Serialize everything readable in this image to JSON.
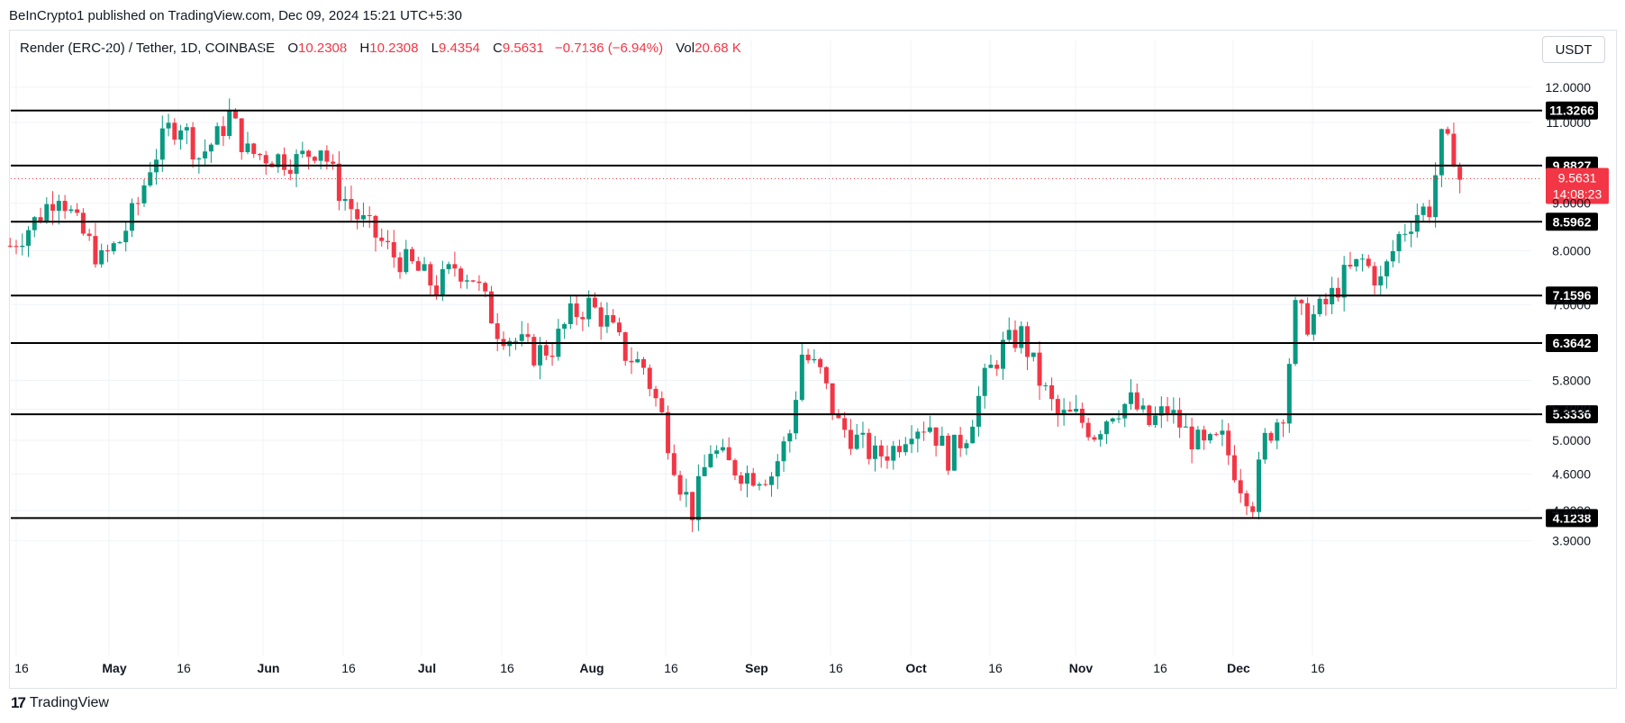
{
  "header": {
    "publisher_line": "BeInCrypto1 published on TradingView.com, Dec 09, 2024 15:21 UTC+5:30"
  },
  "legend": {
    "symbol": "Render (ERC-20) / Tether, 1D, COINBASE",
    "o_label": "O",
    "o_value": "10.2308",
    "h_label": "H",
    "h_value": "10.2308",
    "l_label": "L",
    "l_value": "9.4354",
    "c_label": "C",
    "c_value": "9.5631",
    "change": "−0.7136 (−6.94%)",
    "vol_label": "Vol",
    "vol_value": "20.68 K"
  },
  "currency_button": "USDT",
  "footer": {
    "brand": "TradingView",
    "logo_mark": "17"
  },
  "colors": {
    "up": "#089981",
    "down": "#f23645",
    "level_line": "#000000",
    "grid": "#f0f3fa",
    "price_badge": "#f23645"
  },
  "chart_data": {
    "type": "candlestick",
    "x_ticks": [
      "16",
      "May",
      "16",
      "Jun",
      "16",
      "Jul",
      "16",
      "Aug",
      "16",
      "Sep",
      "16",
      "Oct",
      "16",
      "Nov",
      "16",
      "Dec",
      "16"
    ],
    "y_ticks": [
      "12.0000",
      "11.0000",
      "9.0000",
      "8.0000",
      "7.0000",
      "5.8000",
      "5.4000",
      "5.0000",
      "4.6000",
      "4.2000",
      "3.9000"
    ],
    "y_scale": "log",
    "horizontal_levels": [
      "11.3266",
      "9.8827",
      "8.5962",
      "7.1596",
      "6.3642",
      "5.3336",
      "4.1238"
    ],
    "current_price": "9.5631",
    "countdown": "14:08:23",
    "x_range": [
      "2024-04-16",
      "2024-12-16"
    ],
    "y_range": [
      3.65,
      12.6
    ],
    "grid": true,
    "close_series": [
      {
        "date": "2024-04-15",
        "close": 8.1
      },
      {
        "date": "2024-04-19",
        "close": 8.6
      },
      {
        "date": "2024-04-23",
        "close": 9.3
      },
      {
        "date": "2024-04-26",
        "close": 8.5
      },
      {
        "date": "2024-04-30",
        "close": 7.8
      },
      {
        "date": "2024-05-03",
        "close": 8.2
      },
      {
        "date": "2024-05-06",
        "close": 9.0
      },
      {
        "date": "2024-05-08",
        "close": 9.9
      },
      {
        "date": "2024-05-11",
        "close": 10.8
      },
      {
        "date": "2024-05-13",
        "close": 11.0
      },
      {
        "date": "2024-05-16",
        "close": 10.1
      },
      {
        "date": "2024-05-19",
        "close": 10.6
      },
      {
        "date": "2024-05-21",
        "close": 11.2
      },
      {
        "date": "2024-05-24",
        "close": 10.2
      },
      {
        "date": "2024-05-28",
        "close": 10.1
      },
      {
        "date": "2024-06-01",
        "close": 10.0
      },
      {
        "date": "2024-06-05",
        "close": 10.4
      },
      {
        "date": "2024-06-08",
        "close": 9.3
      },
      {
        "date": "2024-06-11",
        "close": 8.7
      },
      {
        "date": "2024-06-14",
        "close": 8.3
      },
      {
        "date": "2024-06-17",
        "close": 7.9
      },
      {
        "date": "2024-06-20",
        "close": 7.7
      },
      {
        "date": "2024-06-24",
        "close": 7.3
      },
      {
        "date": "2024-06-27",
        "close": 7.7
      },
      {
        "date": "2024-06-30",
        "close": 7.5
      },
      {
        "date": "2024-07-04",
        "close": 6.6
      },
      {
        "date": "2024-07-07",
        "close": 6.4
      },
      {
        "date": "2024-07-10",
        "close": 6.2
      },
      {
        "date": "2024-07-13",
        "close": 6.3
      },
      {
        "date": "2024-07-16",
        "close": 6.8
      },
      {
        "date": "2024-07-19",
        "close": 7.0
      },
      {
        "date": "2024-07-22",
        "close": 6.7
      },
      {
        "date": "2024-07-25",
        "close": 6.2
      },
      {
        "date": "2024-07-28",
        "close": 6.0
      },
      {
        "date": "2024-07-31",
        "close": 5.3
      },
      {
        "date": "2024-08-03",
        "close": 4.5
      },
      {
        "date": "2024-08-05",
        "close": 4.2
      },
      {
        "date": "2024-08-08",
        "close": 4.9
      },
      {
        "date": "2024-08-11",
        "close": 4.7
      },
      {
        "date": "2024-08-14",
        "close": 4.6
      },
      {
        "date": "2024-08-18",
        "close": 4.6
      },
      {
        "date": "2024-08-21",
        "close": 5.1
      },
      {
        "date": "2024-08-23",
        "close": 6.2
      },
      {
        "date": "2024-08-26",
        "close": 5.9
      },
      {
        "date": "2024-08-29",
        "close": 5.2
      },
      {
        "date": "2024-09-01",
        "close": 5.0
      },
      {
        "date": "2024-09-04",
        "close": 4.8
      },
      {
        "date": "2024-09-07",
        "close": 4.9
      },
      {
        "date": "2024-09-10",
        "close": 5.2
      },
      {
        "date": "2024-09-13",
        "close": 5.2
      },
      {
        "date": "2024-09-16",
        "close": 4.8
      },
      {
        "date": "2024-09-19",
        "close": 5.1
      },
      {
        "date": "2024-09-22",
        "close": 5.8
      },
      {
        "date": "2024-09-25",
        "close": 6.3
      },
      {
        "date": "2024-09-28",
        "close": 6.5
      },
      {
        "date": "2024-10-01",
        "close": 5.8
      },
      {
        "date": "2024-10-04",
        "close": 5.3
      },
      {
        "date": "2024-10-07",
        "close": 5.3
      },
      {
        "date": "2024-10-10",
        "close": 5.1
      },
      {
        "date": "2024-10-13",
        "close": 5.4
      },
      {
        "date": "2024-10-16",
        "close": 5.5
      },
      {
        "date": "2024-10-19",
        "close": 5.2
      },
      {
        "date": "2024-10-22",
        "close": 5.4
      },
      {
        "date": "2024-10-25",
        "close": 5.1
      },
      {
        "date": "2024-10-28",
        "close": 4.9
      },
      {
        "date": "2024-10-31",
        "close": 5.0
      },
      {
        "date": "2024-11-03",
        "close": 4.5
      },
      {
        "date": "2024-11-05",
        "close": 4.3
      },
      {
        "date": "2024-11-07",
        "close": 5.0
      },
      {
        "date": "2024-11-10",
        "close": 5.4
      },
      {
        "date": "2024-11-12",
        "close": 6.9
      },
      {
        "date": "2024-11-14",
        "close": 6.7
      },
      {
        "date": "2024-11-17",
        "close": 7.0
      },
      {
        "date": "2024-11-20",
        "close": 7.5
      },
      {
        "date": "2024-11-23",
        "close": 7.8
      },
      {
        "date": "2024-11-26",
        "close": 7.4
      },
      {
        "date": "2024-11-29",
        "close": 8.3
      },
      {
        "date": "2024-12-02",
        "close": 8.8
      },
      {
        "date": "2024-12-04",
        "close": 8.9
      },
      {
        "date": "2024-12-06",
        "close": 10.5
      },
      {
        "date": "2024-12-08",
        "close": 10.2
      },
      {
        "date": "2024-12-09",
        "close": 9.56
      }
    ]
  }
}
